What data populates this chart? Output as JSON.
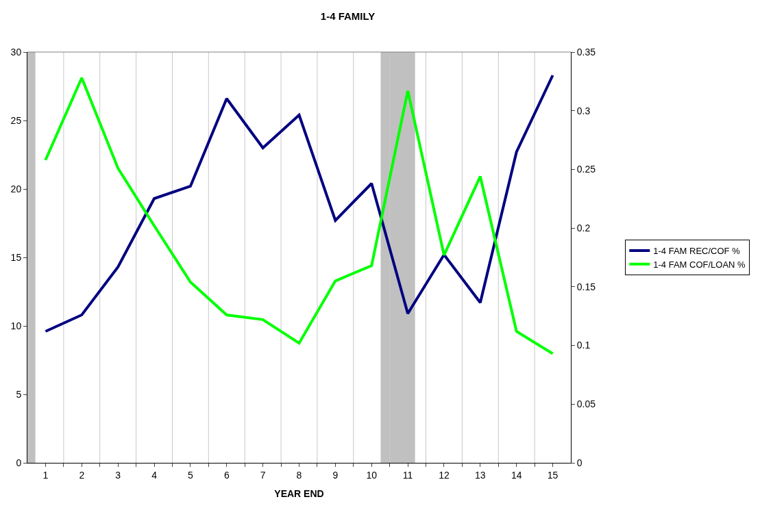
{
  "chart_data": {
    "type": "line",
    "title": "1-4 FAMILY",
    "xlabel": "YEAR END",
    "x": [
      1,
      2,
      3,
      4,
      5,
      6,
      7,
      8,
      9,
      10,
      11,
      12,
      13,
      14,
      15
    ],
    "xlim": [
      0.5,
      15.5
    ],
    "xticks": [
      1,
      2,
      3,
      4,
      5,
      6,
      7,
      8,
      9,
      10,
      11,
      12,
      13,
      14,
      15,
      {
        "value": 1.5,
        "label": null
      },
      {
        "value": 2.5,
        "label": null
      },
      {
        "value": 3.5,
        "label": null
      },
      {
        "value": 4.5,
        "label": null
      },
      {
        "value": 5.5,
        "label": null
      },
      {
        "value": 6.5,
        "label": null
      },
      {
        "value": 7.5,
        "label": null
      },
      {
        "value": 8.5,
        "label": null
      },
      {
        "value": 9.5,
        "label": null
      },
      {
        "value": 10.5,
        "label": null
      },
      {
        "value": 11.5,
        "label": null
      },
      {
        "value": 12.5,
        "label": null
      },
      {
        "value": 13.5,
        "label": null
      },
      {
        "value": 14.5,
        "label": null
      }
    ],
    "ylim": [
      0,
      30
    ],
    "yticks": [
      0,
      5,
      10,
      15,
      20,
      25,
      30
    ],
    "y2lim": [
      0,
      0.35
    ],
    "y2ticks": [
      0,
      0.05,
      0.1,
      0.15,
      0.2,
      0.25,
      0.3,
      0.35
    ],
    "series": [
      {
        "name": "1-4 FAM REC/COF %",
        "color": "#000080",
        "values": [
          9.6,
          10.8,
          14.3,
          19.3,
          20.2,
          26.6,
          23.0,
          25.4,
          17.7,
          20.4,
          10.9,
          15.2,
          11.7,
          22.7,
          28.3
        ]
      },
      {
        "name": "1-4 FAM COF/LOAN %",
        "color": "#00ff00",
        "axis": "y2",
        "values": [
          0.258,
          0.328,
          0.251,
          0.202,
          0.154,
          0.126,
          0.122,
          0.102,
          0.155,
          0.168,
          0.317,
          0.177,
          0.244,
          0.112,
          0.093
        ]
      }
    ],
    "bands": [
      {
        "axis": "x",
        "from": 0.5,
        "to": 0.72,
        "color": "#c0c0c0"
      },
      {
        "axis": "x",
        "from": 10.25,
        "to": 11.2,
        "color": "#c0c0c0"
      }
    ],
    "grid": "x",
    "legend": "right",
    "marker": "none",
    "line_style": "solid"
  }
}
